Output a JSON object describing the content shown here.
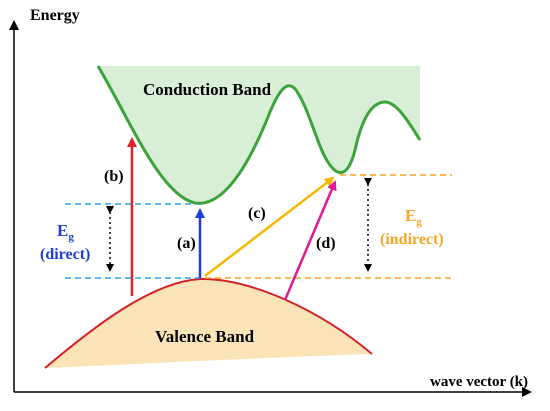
{
  "axes": {
    "y_label": "Energy",
    "x_label": "wave vector (k)"
  },
  "bands": {
    "conduction": "Conduction Band",
    "valence": "Valence Band"
  },
  "transitions": {
    "a": "(a)",
    "b": "(b)",
    "c": "(c)",
    "d": "(d)"
  },
  "gaps": {
    "direct": {
      "symbol": "E",
      "subscript": "g",
      "qualifier": "(direct)",
      "color": "#1f3fd1"
    },
    "indirect": {
      "symbol": "E",
      "subscript": "g",
      "qualifier": "(indirect)",
      "color": "#f5a623"
    }
  },
  "colors": {
    "conduction_fill": "#d9eed7",
    "conduction_edge": "#3aa43a",
    "valence_fill": "#fbe3b8",
    "valence_edge": "#d4202a",
    "arrow_a": "#1d3fd6",
    "arrow_b": "#e0202a",
    "arrow_c": "#f5b800",
    "arrow_d": "#e0189a",
    "dash_direct": "#2fa3e0",
    "dash_indirect": "#f5a623"
  }
}
